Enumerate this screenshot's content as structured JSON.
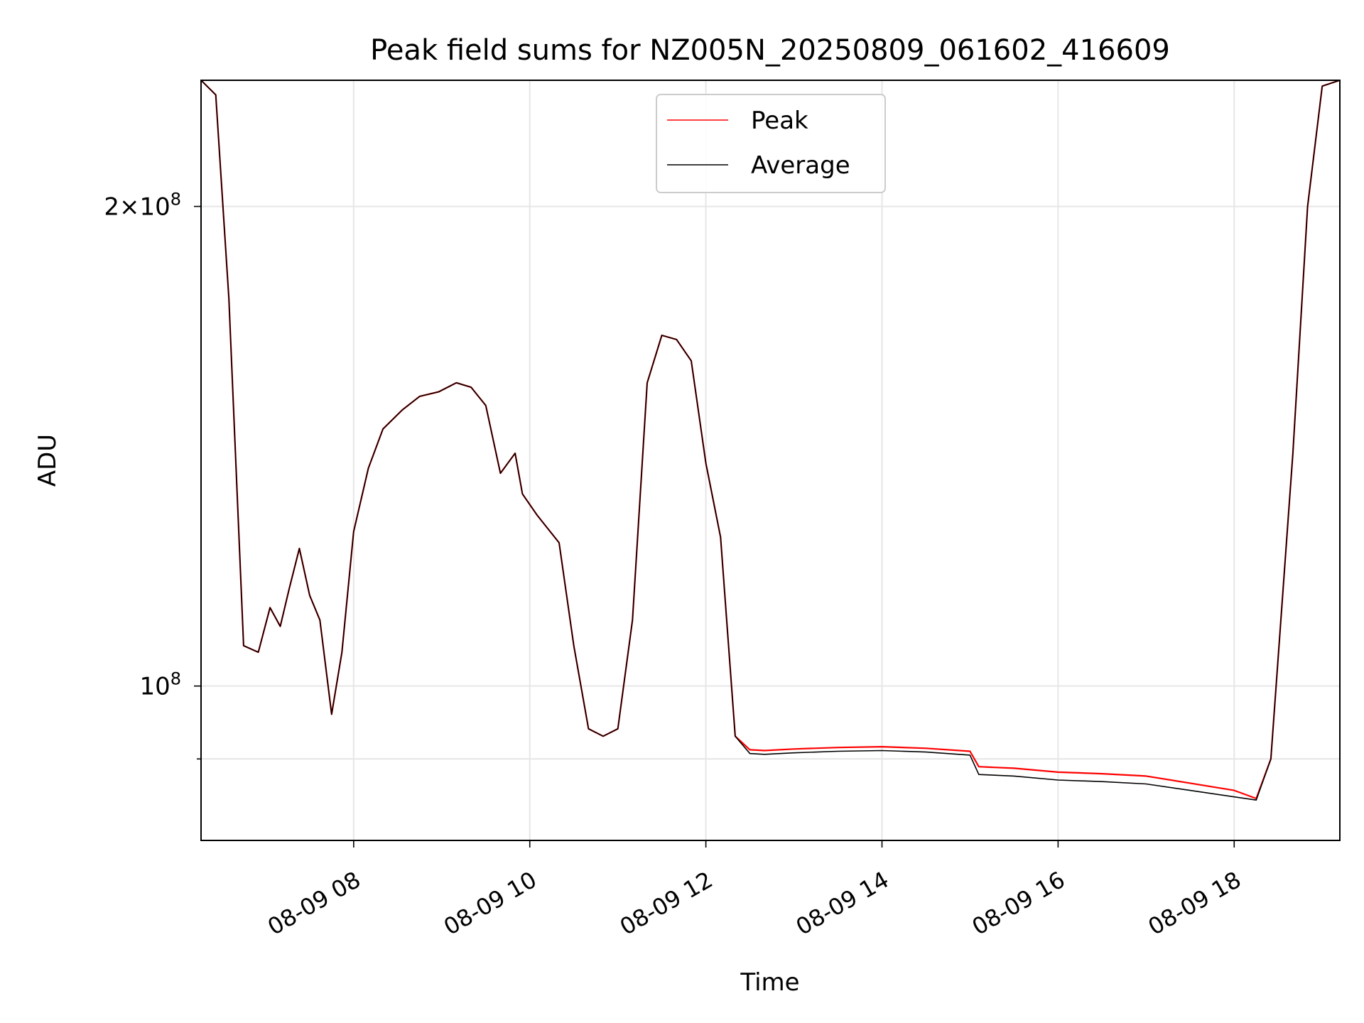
{
  "colors": {
    "peak": "#ff0000",
    "average": "#000000",
    "grid": "#e6e6e6",
    "background": "#ffffff"
  },
  "chart_data": {
    "type": "line",
    "title": "Peak field sums for NZ005N_20250809_061602_416609",
    "xlabel": "Time",
    "ylabel": "ADU",
    "yscale": "log",
    "xlim": [
      "2025-08-09 06:16",
      "2025-08-09 19:12"
    ],
    "ylim": [
      80000000,
      240000000
    ],
    "grid": true,
    "legend_position": "upper center",
    "xticks": [
      {
        "value": "2025-08-09 08:00",
        "label": "08-09 08"
      },
      {
        "value": "2025-08-09 10:00",
        "label": "08-09 10"
      },
      {
        "value": "2025-08-09 12:00",
        "label": "08-09 12"
      },
      {
        "value": "2025-08-09 14:00",
        "label": "08-09 14"
      },
      {
        "value": "2025-08-09 16:00",
        "label": "08-09 16"
      },
      {
        "value": "2025-08-09 18:00",
        "label": "08-09 18"
      }
    ],
    "yticks_major": [
      {
        "value": 200000000,
        "base": "2×10",
        "exp": "8"
      },
      {
        "value": 100000000,
        "base": "10",
        "exp": "8"
      }
    ],
    "yticks_minor": [
      90000000
    ],
    "series": [
      {
        "name": "Peak",
        "color": "#ff0000",
        "x": [
          "2025-08-09 06:16",
          "2025-08-09 06:26",
          "2025-08-09 06:35",
          "2025-08-09 06:45",
          "2025-08-09 06:55",
          "2025-08-09 07:03",
          "2025-08-09 07:10",
          "2025-08-09 07:16",
          "2025-08-09 07:23",
          "2025-08-09 07:30",
          "2025-08-09 07:37",
          "2025-08-09 07:45",
          "2025-08-09 07:52",
          "2025-08-09 08:00",
          "2025-08-09 08:10",
          "2025-08-09 08:20",
          "2025-08-09 08:33",
          "2025-08-09 08:45",
          "2025-08-09 08:58",
          "2025-08-09 09:10",
          "2025-08-09 09:20",
          "2025-08-09 09:30",
          "2025-08-09 09:40",
          "2025-08-09 09:50",
          "2025-08-09 09:55",
          "2025-08-09 10:05",
          "2025-08-09 10:20",
          "2025-08-09 10:30",
          "2025-08-09 10:40",
          "2025-08-09 10:50",
          "2025-08-09 11:00",
          "2025-08-09 11:10",
          "2025-08-09 11:20",
          "2025-08-09 11:30",
          "2025-08-09 11:40",
          "2025-08-09 11:50",
          "2025-08-09 12:00",
          "2025-08-09 12:10",
          "2025-08-09 12:20",
          "2025-08-09 12:30",
          "2025-08-09 12:40",
          "2025-08-09 13:00",
          "2025-08-09 13:30",
          "2025-08-09 14:00",
          "2025-08-09 14:30",
          "2025-08-09 15:00",
          "2025-08-09 15:06",
          "2025-08-09 15:30",
          "2025-08-09 16:00",
          "2025-08-09 16:30",
          "2025-08-09 17:00",
          "2025-08-09 17:30",
          "2025-08-09 18:00",
          "2025-08-09 18:15",
          "2025-08-09 18:25",
          "2025-08-09 18:40",
          "2025-08-09 18:50",
          "2025-08-09 19:00",
          "2025-08-09 19:12"
        ],
        "y": [
          240000000,
          235000000,
          175000000,
          106000000,
          105000000,
          112000000,
          109000000,
          115000000,
          122000000,
          114000000,
          110000000,
          96000000,
          105000000,
          125000000,
          137000000,
          145000000,
          149000000,
          152000000,
          153000000,
          155000000,
          154000000,
          150000000,
          136000000,
          140000000,
          132000000,
          128000000,
          123000000,
          106000000,
          94000000,
          93000000,
          94000000,
          110000000,
          155000000,
          166000000,
          165000000,
          160000000,
          138000000,
          124000000,
          93000000,
          91200000,
          91100000,
          91300000,
          91500000,
          91600000,
          91400000,
          91000000,
          89000000,
          88800000,
          88300000,
          88100000,
          87800000,
          86900000,
          86000000,
          85000000,
          90000000,
          140000000,
          200000000,
          238000000,
          240000000
        ]
      },
      {
        "name": "Average",
        "color": "#000000",
        "x": [
          "2025-08-09 06:16",
          "2025-08-09 06:26",
          "2025-08-09 06:35",
          "2025-08-09 06:45",
          "2025-08-09 06:55",
          "2025-08-09 07:03",
          "2025-08-09 07:10",
          "2025-08-09 07:16",
          "2025-08-09 07:23",
          "2025-08-09 07:30",
          "2025-08-09 07:37",
          "2025-08-09 07:45",
          "2025-08-09 07:52",
          "2025-08-09 08:00",
          "2025-08-09 08:10",
          "2025-08-09 08:20",
          "2025-08-09 08:33",
          "2025-08-09 08:45",
          "2025-08-09 08:58",
          "2025-08-09 09:10",
          "2025-08-09 09:20",
          "2025-08-09 09:30",
          "2025-08-09 09:40",
          "2025-08-09 09:50",
          "2025-08-09 09:55",
          "2025-08-09 10:05",
          "2025-08-09 10:20",
          "2025-08-09 10:30",
          "2025-08-09 10:40",
          "2025-08-09 10:50",
          "2025-08-09 11:00",
          "2025-08-09 11:10",
          "2025-08-09 11:20",
          "2025-08-09 11:30",
          "2025-08-09 11:40",
          "2025-08-09 11:50",
          "2025-08-09 12:00",
          "2025-08-09 12:10",
          "2025-08-09 12:20",
          "2025-08-09 12:30",
          "2025-08-09 12:40",
          "2025-08-09 13:00",
          "2025-08-09 13:30",
          "2025-08-09 14:00",
          "2025-08-09 14:30",
          "2025-08-09 15:00",
          "2025-08-09 15:06",
          "2025-08-09 15:30",
          "2025-08-09 16:00",
          "2025-08-09 16:30",
          "2025-08-09 17:00",
          "2025-08-09 17:30",
          "2025-08-09 18:00",
          "2025-08-09 18:15",
          "2025-08-09 18:25",
          "2025-08-09 18:40",
          "2025-08-09 18:50",
          "2025-08-09 19:00",
          "2025-08-09 19:12"
        ],
        "y": [
          240000000,
          235000000,
          175000000,
          106000000,
          105000000,
          112000000,
          109000000,
          115000000,
          122000000,
          114000000,
          110000000,
          96000000,
          105000000,
          125000000,
          137000000,
          145000000,
          149000000,
          152000000,
          153000000,
          155000000,
          154000000,
          150000000,
          136000000,
          140000000,
          132000000,
          128000000,
          123000000,
          106000000,
          94000000,
          93000000,
          94000000,
          110000000,
          155000000,
          166000000,
          165000000,
          160000000,
          138000000,
          124000000,
          93000000,
          90700000,
          90600000,
          90800000,
          91000000,
          91100000,
          90900000,
          90500000,
          88000000,
          87800000,
          87300000,
          87100000,
          86800000,
          86000000,
          85200000,
          84800000,
          90000000,
          140000000,
          200000000,
          238000000,
          240000000
        ]
      }
    ]
  }
}
